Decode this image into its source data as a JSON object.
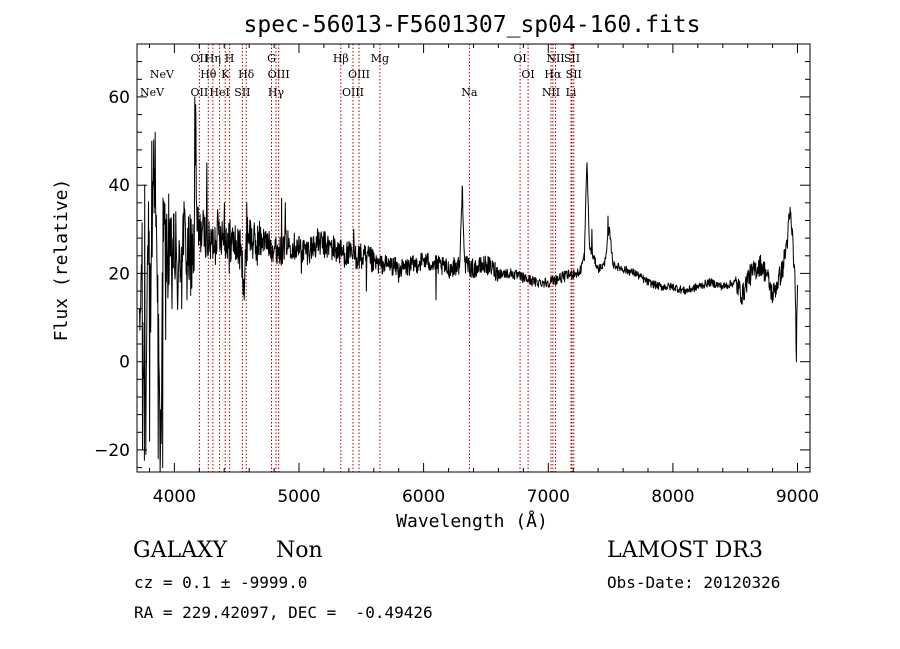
{
  "chart_data": {
    "type": "line",
    "title": "spec-56013-F5601307_sp04-160.fits",
    "xlabel": "Wavelength (Å)",
    "ylabel": "Flux (relative)",
    "xlim": [
      3700,
      9100
    ],
    "ylim": [
      -25,
      72
    ],
    "x_ticks": [
      4000,
      5000,
      6000,
      7000,
      8000,
      9000
    ],
    "y_ticks": [
      -20,
      0,
      20,
      40,
      60
    ],
    "line_color": "#000000",
    "marker_color": "#aa0000",
    "lines": [
      {
        "label": "NeV",
        "wavelength": 3426,
        "row": 2
      },
      {
        "label": "NeV",
        "wavelength": 3346,
        "row": 3
      },
      {
        "label": "OII",
        "wavelength": 3727,
        "row": 1
      },
      {
        "label": "Hη",
        "wavelength": 3835,
        "row": 1
      },
      {
        "label": "H",
        "wavelength": 3969,
        "row": 1
      },
      {
        "label": "Hθ",
        "wavelength": 3798,
        "row": 2
      },
      {
        "label": "K",
        "wavelength": 3934,
        "row": 2
      },
      {
        "label": "Hδ",
        "wavelength": 4102,
        "row": 2
      },
      {
        "label": "OII",
        "wavelength": 3727,
        "row": 3
      },
      {
        "label": "HeI",
        "wavelength": 3889,
        "row": 3
      },
      {
        "label": "SII",
        "wavelength": 4072,
        "row": 3
      },
      {
        "label": "G",
        "wavelength": 4305,
        "row": 1
      },
      {
        "label": "OIII",
        "wavelength": 4363,
        "row": 2
      },
      {
        "label": "Hγ",
        "wavelength": 4341,
        "row": 3
      },
      {
        "label": "Hβ",
        "wavelength": 4861,
        "row": 1
      },
      {
        "label": "OIII",
        "wavelength": 5007,
        "row": 2
      },
      {
        "label": "OIII",
        "wavelength": 4959,
        "row": 3
      },
      {
        "label": "Mg",
        "wavelength": 5175,
        "row": 1
      },
      {
        "label": "Na",
        "wavelength": 5893,
        "row": 3
      },
      {
        "label": "OI",
        "wavelength": 6300,
        "row": 1
      },
      {
        "label": "OI",
        "wavelength": 6364,
        "row": 2
      },
      {
        "label": "NII",
        "wavelength": 6584,
        "row": 1
      },
      {
        "label": "Hα",
        "wavelength": 6563,
        "row": 2
      },
      {
        "label": "NII",
        "wavelength": 6548,
        "row": 3
      },
      {
        "label": "SII",
        "wavelength": 6716,
        "row": 1
      },
      {
        "label": "SII",
        "wavelength": 6731,
        "row": 2
      },
      {
        "label": "Li",
        "wavelength": 6708,
        "row": 3
      }
    ],
    "marker_positions": [
      3727,
      3798,
      3835,
      3889,
      3934,
      3969,
      4072,
      4102,
      4305,
      4341,
      4363,
      4861,
      4959,
      5007,
      5175,
      5893,
      6300,
      6364,
      6548,
      6563,
      6584,
      6708,
      6716,
      6731
    ],
    "label_offset_angstrom": 474,
    "spectrum_knots": [
      [
        3720,
        4
      ],
      [
        3740,
        25
      ],
      [
        3760,
        -18
      ],
      [
        3790,
        30
      ],
      [
        3810,
        10
      ],
      [
        3830,
        45
      ],
      [
        3860,
        28
      ],
      [
        3880,
        -10
      ],
      [
        3890,
        -20
      ],
      [
        3910,
        32
      ],
      [
        3950,
        22
      ],
      [
        3990,
        26
      ],
      [
        4030,
        18
      ],
      [
        4070,
        30
      ],
      [
        4110,
        24
      ],
      [
        4160,
        26
      ],
      [
        4170,
        58
      ],
      [
        4180,
        28
      ],
      [
        4230,
        30
      ],
      [
        4290,
        26
      ],
      [
        4350,
        30
      ],
      [
        4420,
        28
      ],
      [
        4480,
        27
      ],
      [
        4530,
        25
      ],
      [
        4560,
        18
      ],
      [
        4590,
        30
      ],
      [
        4650,
        26
      ],
      [
        4700,
        28
      ],
      [
        4780,
        26
      ],
      [
        4860,
        25
      ],
      [
        4900,
        27
      ],
      [
        4980,
        26
      ],
      [
        5060,
        25
      ],
      [
        5150,
        27
      ],
      [
        5250,
        26
      ],
      [
        5320,
        25
      ],
      [
        5420,
        24
      ],
      [
        5460,
        24
      ],
      [
        5560,
        23
      ],
      [
        5640,
        22
      ],
      [
        5720,
        22
      ],
      [
        5820,
        21
      ],
      [
        5930,
        22
      ],
      [
        6000,
        23
      ],
      [
        6100,
        22
      ],
      [
        6200,
        21
      ],
      [
        6290,
        22
      ],
      [
        6310,
        40
      ],
      [
        6330,
        22
      ],
      [
        6400,
        21
      ],
      [
        6500,
        22
      ],
      [
        6560,
        21
      ],
      [
        6600,
        20
      ],
      [
        6700,
        20
      ],
      [
        6800,
        19
      ],
      [
        6900,
        18
      ],
      [
        7000,
        18
      ],
      [
        7100,
        19
      ],
      [
        7200,
        20
      ],
      [
        7250,
        20
      ],
      [
        7290,
        24
      ],
      [
        7310,
        46
      ],
      [
        7330,
        26
      ],
      [
        7400,
        21
      ],
      [
        7450,
        22
      ],
      [
        7490,
        30
      ],
      [
        7520,
        22
      ],
      [
        7600,
        21
      ],
      [
        7700,
        20
      ],
      [
        7800,
        18
      ],
      [
        7900,
        17
      ],
      [
        8000,
        17
      ],
      [
        8100,
        16
      ],
      [
        8200,
        17
      ],
      [
        8300,
        18
      ],
      [
        8400,
        17
      ],
      [
        8500,
        18
      ],
      [
        8560,
        15
      ],
      [
        8600,
        19
      ],
      [
        8700,
        22
      ],
      [
        8750,
        20
      ],
      [
        8800,
        15
      ],
      [
        8840,
        18
      ],
      [
        8880,
        21
      ],
      [
        8920,
        28
      ],
      [
        8940,
        34
      ],
      [
        8960,
        28
      ],
      [
        8980,
        18
      ],
      [
        8990,
        4
      ],
      [
        9000,
        15
      ]
    ],
    "spectrum_spikes": [
      [
        3745,
        -20
      ],
      [
        3762,
        40
      ],
      [
        3770,
        -21
      ],
      [
        3800,
        -18
      ],
      [
        3820,
        50
      ],
      [
        3845,
        52
      ],
      [
        3870,
        -22
      ],
      [
        3885,
        -26
      ],
      [
        3905,
        -24
      ],
      [
        3930,
        5
      ],
      [
        3955,
        38
      ],
      [
        3980,
        12
      ],
      [
        4010,
        34
      ],
      [
        4060,
        12
      ],
      [
        4100,
        14
      ],
      [
        4130,
        15
      ],
      [
        4165,
        60
      ],
      [
        4190,
        35
      ],
      [
        4260,
        45
      ],
      [
        4330,
        22
      ],
      [
        4400,
        36
      ],
      [
        4440,
        20
      ],
      [
        4560,
        14
      ],
      [
        4580,
        36
      ],
      [
        4860,
        37
      ],
      [
        4890,
        36
      ],
      [
        5020,
        20
      ],
      [
        5440,
        30
      ],
      [
        5540,
        16
      ],
      [
        5800,
        18
      ],
      [
        6100,
        14
      ],
      [
        7350,
        30
      ],
      [
        7480,
        33
      ],
      [
        8940,
        35
      ],
      [
        8990,
        0
      ]
    ],
    "spectrum_noise": [
      {
        "until": 4200,
        "amp": 9
      },
      {
        "until": 4700,
        "amp": 5
      },
      {
        "until": 5600,
        "amp": 3.2
      },
      {
        "until": 6600,
        "amp": 2.2
      },
      {
        "until": 7300,
        "amp": 1.2
      },
      {
        "until": 8500,
        "amp": 0.9
      },
      {
        "until": 9100,
        "amp": 2.5
      }
    ]
  },
  "info": {
    "object_class": "GALAXY",
    "subclass": "Non",
    "survey": "LAMOST DR3",
    "cz_line": "cz = 0.1 ± -9999.0",
    "obs_date": "Obs-Date: 20120326",
    "radec": "RA = 229.42097, DEC =  -0.49426"
  }
}
